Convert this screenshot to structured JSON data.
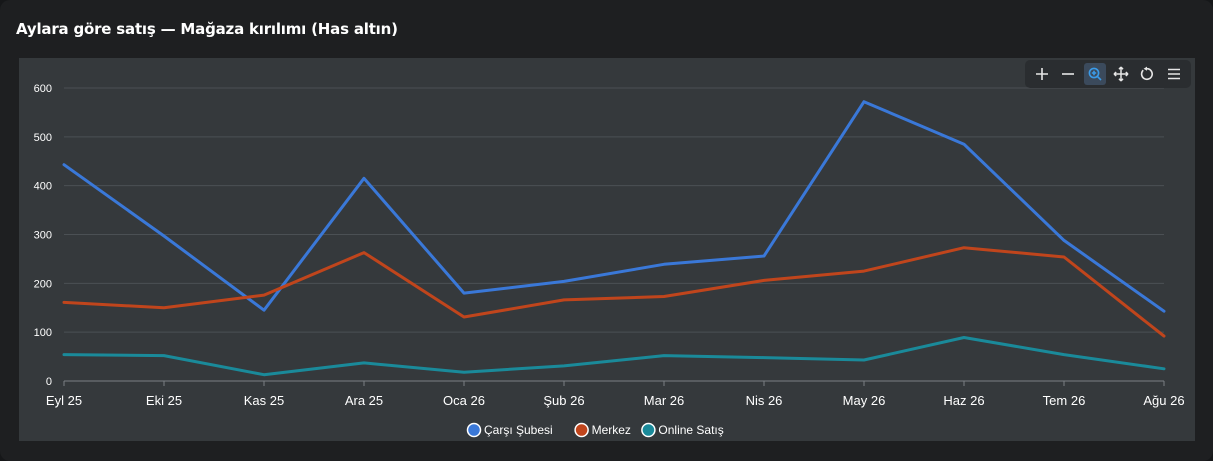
{
  "title": "Aylara göre satış — Mağaza kırılımı (Has altın)",
  "toolbar": {
    "items": [
      {
        "icon": "zoom-in-icon",
        "active": false
      },
      {
        "icon": "zoom-out-icon",
        "active": false
      },
      {
        "icon": "selection-zoom-icon",
        "active": true
      },
      {
        "icon": "pan-icon",
        "active": false
      },
      {
        "icon": "reset-icon",
        "active": false
      },
      {
        "icon": "menu-icon",
        "active": false
      }
    ]
  },
  "chart_data": {
    "type": "line",
    "categories": [
      "Eyl 25",
      "Eki 25",
      "Kas 25",
      "Ara 25",
      "Oca 26",
      "Şub 26",
      "Mar 26",
      "Nis 26",
      "May 26",
      "Haz 26",
      "Tem 26",
      "Ağu 26"
    ],
    "series": [
      {
        "name": "Çarşı Şubesi",
        "color": "#3a78d8",
        "values": [
          443,
          297,
          145,
          415,
          180,
          204,
          239,
          256,
          572,
          485,
          288,
          143
        ]
      },
      {
        "name": "Merkez",
        "color": "#c0451c",
        "values": [
          161,
          150,
          176,
          263,
          131,
          166,
          173,
          206,
          225,
          273,
          254,
          92
        ]
      },
      {
        "name": "Online Satış",
        "color": "#1a8a9a",
        "values": [
          54,
          52,
          13,
          37,
          18,
          31,
          52,
          48,
          43,
          89,
          54,
          25
        ]
      }
    ],
    "yticks": [
      0,
      100,
      200,
      300,
      400,
      500,
      600
    ],
    "ylim": [
      0,
      600
    ],
    "grid": true,
    "legend": "bottom-center",
    "xlabel": "",
    "ylabel": ""
  }
}
